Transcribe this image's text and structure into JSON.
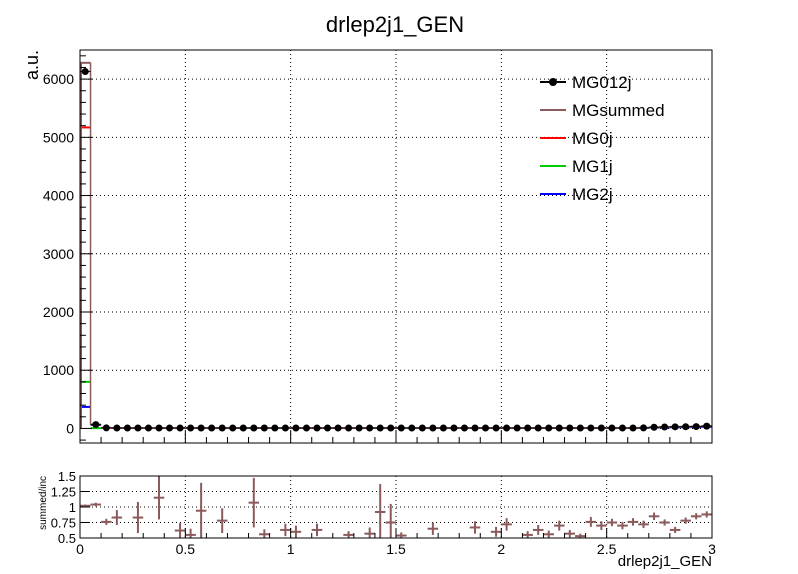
{
  "chart_data": [
    {
      "type": "line",
      "title": "drlep2j1_GEN",
      "xlabel": "",
      "ylabel": "a.u.",
      "xlim": [
        0,
        3
      ],
      "ylim": [
        -250,
        6500
      ],
      "grid": true,
      "legend_position": "top-right",
      "y_ticks": [
        0,
        1000,
        2000,
        3000,
        4000,
        5000,
        6000
      ],
      "y_tick_labels": [
        "0",
        "1000",
        "2000",
        "3000",
        "4000",
        "5000",
        "6000"
      ],
      "bin_width": 0.05,
      "first_bin": {
        "x": 0.025,
        "values": {
          "MG012j": 6130,
          "MGsummed": 6280,
          "MG0j": 5170,
          "MG1j": 800,
          "MG2j": 370
        }
      },
      "series": [
        {
          "name": "MG012j",
          "color": "#000000",
          "style": "points",
          "x": [
            0.025,
            0.075,
            0.125,
            0.175,
            0.225,
            0.275,
            0.325,
            0.375,
            0.425,
            0.475,
            0.525,
            0.575,
            0.625,
            0.675,
            0.725,
            0.775,
            0.825,
            0.875,
            0.925,
            0.975,
            1.025,
            1.075,
            1.125,
            1.175,
            1.225,
            1.275,
            1.325,
            1.375,
            1.425,
            1.475,
            1.525,
            1.575,
            1.625,
            1.675,
            1.725,
            1.775,
            1.825,
            1.875,
            1.925,
            1.975,
            2.025,
            2.075,
            2.125,
            2.175,
            2.225,
            2.275,
            2.325,
            2.375,
            2.425,
            2.475,
            2.525,
            2.575,
            2.625,
            2.675,
            2.725,
            2.775,
            2.825,
            2.875,
            2.925,
            2.975
          ],
          "y": [
            6130,
            65,
            10,
            8,
            7,
            7,
            7,
            7,
            7,
            7,
            7,
            7,
            7,
            7,
            7,
            7,
            7,
            7,
            7,
            7,
            7,
            7,
            7,
            7,
            7,
            7,
            7,
            7,
            7,
            7,
            7,
            7,
            7,
            7,
            7,
            7,
            7,
            7,
            7,
            7,
            7,
            7,
            7,
            7,
            7,
            7,
            7,
            7,
            7,
            7,
            7,
            7,
            7,
            10,
            20,
            25,
            28,
            30,
            32,
            40
          ]
        },
        {
          "name": "MGsummed",
          "color": "#8b5a5a",
          "style": "step",
          "x": [
            0.025,
            0.075,
            0.125,
            0.175,
            0.225,
            0.275,
            0.325,
            0.375,
            0.425,
            0.475,
            0.525,
            0.575,
            0.625,
            0.675,
            0.725,
            0.775,
            0.825,
            0.875,
            0.925,
            0.975,
            1.025,
            1.075,
            1.125,
            1.175,
            1.225,
            1.275,
            1.325,
            1.375,
            1.425,
            1.475,
            1.525,
            1.575,
            1.625,
            1.675,
            1.725,
            1.775,
            1.825,
            1.875,
            1.925,
            1.975,
            2.025,
            2.075,
            2.125,
            2.175,
            2.225,
            2.275,
            2.325,
            2.375,
            2.425,
            2.475,
            2.525,
            2.575,
            2.625,
            2.675,
            2.725,
            2.775,
            2.825,
            2.875,
            2.925,
            2.975
          ],
          "y": [
            6280,
            65,
            10,
            8,
            7,
            7,
            7,
            7,
            7,
            7,
            7,
            7,
            7,
            7,
            7,
            7,
            7,
            7,
            7,
            7,
            7,
            7,
            7,
            7,
            7,
            7,
            7,
            7,
            7,
            7,
            7,
            7,
            7,
            7,
            7,
            7,
            7,
            7,
            7,
            7,
            7,
            7,
            7,
            7,
            7,
            7,
            7,
            7,
            7,
            7,
            7,
            7,
            7,
            10,
            20,
            25,
            28,
            30,
            32,
            40
          ]
        },
        {
          "name": "MG0j",
          "color": "#ff0000",
          "style": "step",
          "x": [
            0.025
          ],
          "y": [
            5170
          ]
        },
        {
          "name": "MG1j",
          "color": "#00cc00",
          "style": "step",
          "x": [
            0.025,
            0.075
          ],
          "y": [
            800,
            5
          ]
        },
        {
          "name": "MG2j",
          "color": "#0000ff",
          "style": "step",
          "x": [
            0.025,
            0.075,
            2.675,
            2.725,
            2.775,
            2.825,
            2.875,
            2.925,
            2.975
          ],
          "y": [
            370,
            60,
            8,
            15,
            18,
            20,
            22,
            24,
            28
          ]
        }
      ]
    },
    {
      "type": "scatter",
      "xlabel": "drlep2j1_GEN",
      "ylabel": "summed/inc",
      "xlim": [
        0,
        3
      ],
      "ylim": [
        0.5,
        1.5
      ],
      "grid": true,
      "x_ticks": [
        0,
        0.5,
        1,
        1.5,
        2,
        2.5,
        3
      ],
      "x_tick_labels": [
        "0",
        "0.5",
        "1",
        "1.5",
        "2",
        "2.5",
        "3"
      ],
      "y_ticks": [
        0.5,
        0.75,
        1,
        1.25,
        1.5
      ],
      "y_tick_labels": [
        "0.5",
        "0.75",
        "1",
        "1.25",
        "1.5"
      ],
      "series": [
        {
          "color": "#8b5a5a",
          "style": "errorbars",
          "x": [
            0.025,
            0.075,
            0.125,
            0.175,
            0.275,
            0.375,
            0.475,
            0.525,
            0.575,
            0.675,
            0.825,
            0.875,
            0.975,
            1.025,
            1.125,
            1.275,
            1.375,
            1.425,
            1.475,
            1.525,
            1.675,
            1.875,
            1.975,
            2.025,
            2.125,
            2.175,
            2.225,
            2.275,
            2.325,
            2.375,
            2.425,
            2.475,
            2.525,
            2.575,
            2.625,
            2.675,
            2.725,
            2.775,
            2.825,
            2.875,
            2.925,
            2.975
          ],
          "y": [
            1.02,
            1.04,
            0.76,
            0.83,
            0.83,
            1.15,
            0.62,
            0.55,
            0.94,
            0.78,
            1.07,
            0.56,
            0.63,
            0.6,
            0.63,
            0.55,
            0.57,
            0.92,
            0.75,
            0.54,
            0.65,
            0.67,
            0.6,
            0.72,
            0.55,
            0.63,
            0.56,
            0.7,
            0.57,
            0.53,
            0.76,
            0.7,
            0.75,
            0.7,
            0.76,
            0.72,
            0.85,
            0.75,
            0.63,
            0.78,
            0.85,
            0.88
          ],
          "err": [
            0.02,
            0.03,
            0.05,
            0.12,
            0.25,
            0.35,
            0.12,
            0.1,
            0.45,
            0.2,
            0.4,
            0.08,
            0.1,
            0.1,
            0.1,
            0.06,
            0.1,
            0.45,
            0.3,
            0.05,
            0.1,
            0.1,
            0.08,
            0.1,
            0.06,
            0.08,
            0.06,
            0.08,
            0.06,
            0.04,
            0.08,
            0.07,
            0.06,
            0.06,
            0.06,
            0.06,
            0.06,
            0.05,
            0.05,
            0.05,
            0.05,
            0.05
          ]
        }
      ]
    }
  ]
}
